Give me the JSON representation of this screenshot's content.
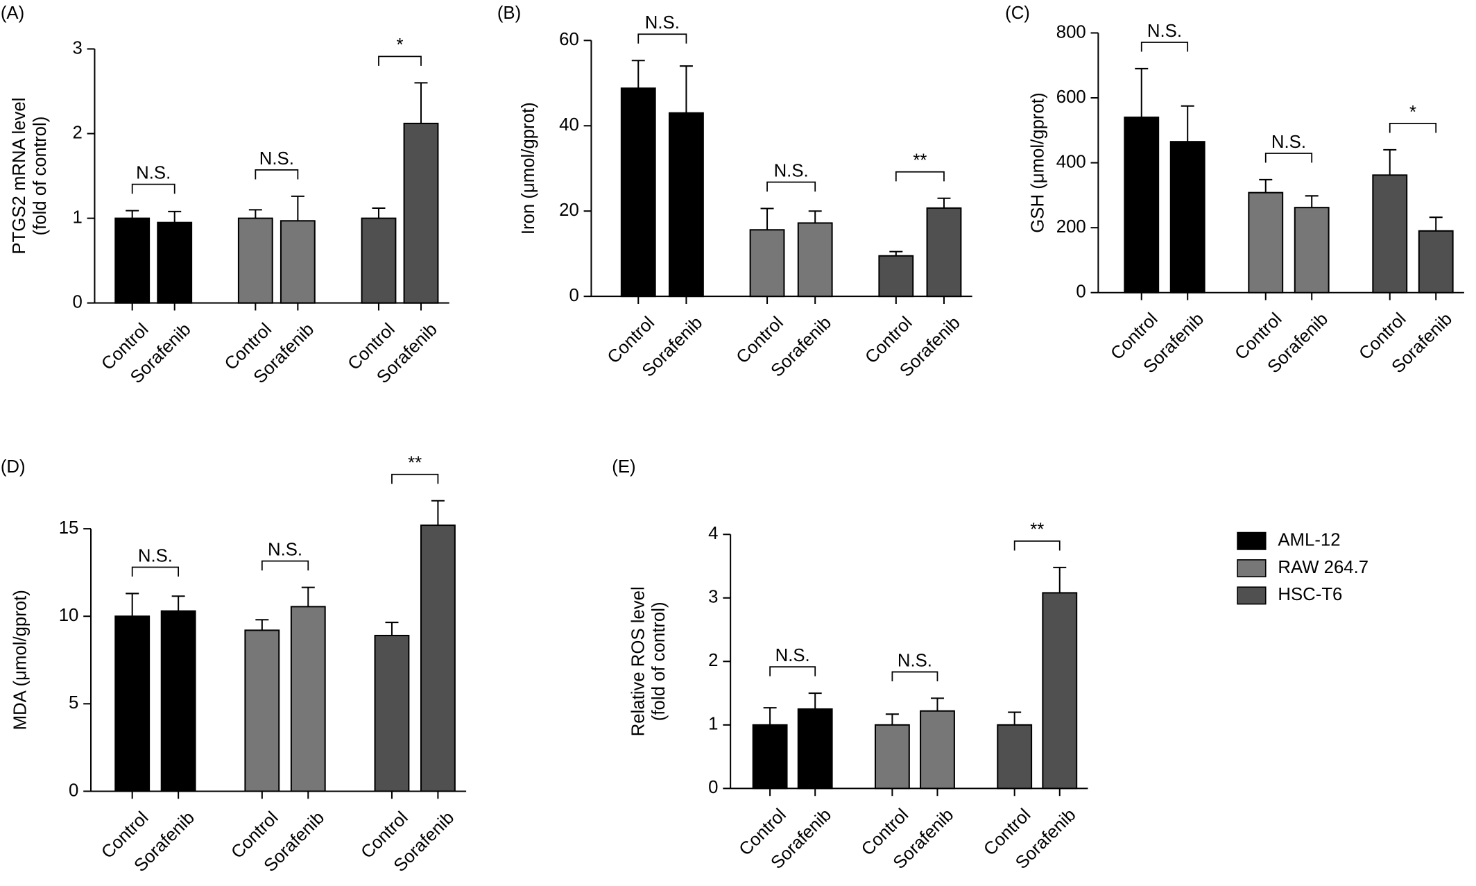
{
  "chart_data": [
    {
      "type": "bar",
      "title": "(A)",
      "ylabel": [
        "PTGS2 mRNA level",
        "(fold of control)"
      ],
      "categories": [
        "Control",
        "Sorafenib"
      ],
      "ylim": [
        0,
        3
      ],
      "yticks": [
        0,
        1,
        2,
        3
      ],
      "series": [
        {
          "color": "#000000",
          "values": [
            1.0,
            0.95
          ],
          "errors": [
            0.09,
            0.13
          ],
          "significance": "N.S."
        },
        {
          "color": "#777777",
          "values": [
            1.0,
            0.97
          ],
          "errors": [
            0.1,
            0.29
          ],
          "significance": "N.S."
        },
        {
          "color": "#505050",
          "values": [
            1.0,
            2.12
          ],
          "errors": [
            0.12,
            0.48
          ],
          "significance": "*"
        }
      ]
    },
    {
      "type": "bar",
      "title": "(B)",
      "ylabel": [
        "Iron (μmol/gprot)"
      ],
      "categories": [
        "Control",
        "Sorafenib"
      ],
      "ylim": [
        0,
        60
      ],
      "yticks": [
        0,
        20,
        40,
        60
      ],
      "series": [
        {
          "color": "#000000",
          "values": [
            48.8,
            43
          ],
          "errors": [
            6.5,
            11
          ],
          "significance": "N.S."
        },
        {
          "color": "#777777",
          "values": [
            15.6,
            17.2
          ],
          "errors": [
            5,
            2.8
          ],
          "significance": "N.S."
        },
        {
          "color": "#505050",
          "values": [
            9.5,
            20.7
          ],
          "errors": [
            1,
            2.3
          ],
          "significance": "**"
        }
      ]
    },
    {
      "type": "bar",
      "title": "(C)",
      "ylabel": [
        "GSH (μmol/gprot)"
      ],
      "categories": [
        "Control",
        "Sorafenib"
      ],
      "ylim": [
        0,
        800
      ],
      "yticks": [
        0,
        200,
        400,
        600,
        800
      ],
      "series": [
        {
          "color": "#000000",
          "values": [
            540,
            465
          ],
          "errors": [
            150,
            110
          ],
          "significance": "N.S."
        },
        {
          "color": "#777777",
          "values": [
            308,
            262
          ],
          "errors": [
            40,
            36
          ],
          "significance": "N.S."
        },
        {
          "color": "#505050",
          "values": [
            362,
            190
          ],
          "errors": [
            78,
            42
          ],
          "significance": "*"
        }
      ]
    },
    {
      "type": "bar",
      "title": "(D)",
      "ylabel": [
        "MDA (μmol/gprot)"
      ],
      "categories": [
        "Control",
        "Sorafenib"
      ],
      "ylim": [
        0,
        15
      ],
      "yticks": [
        0,
        5,
        10,
        15
      ],
      "series": [
        {
          "color": "#000000",
          "values": [
            10,
            10.3
          ],
          "errors": [
            1.3,
            0.85
          ],
          "significance": "N.S."
        },
        {
          "color": "#777777",
          "values": [
            9.2,
            10.55
          ],
          "errors": [
            0.6,
            1.1
          ],
          "significance": "N.S."
        },
        {
          "color": "#505050",
          "values": [
            8.9,
            15.2
          ],
          "errors": [
            0.75,
            1.4
          ],
          "significance": "**"
        }
      ]
    },
    {
      "type": "bar",
      "title": "(E)",
      "ylabel": [
        "Relative ROS level",
        "(fold of control)"
      ],
      "categories": [
        "Control",
        "Sorafenib"
      ],
      "ylim": [
        0,
        4
      ],
      "yticks": [
        0,
        1,
        2,
        3,
        4
      ],
      "series": [
        {
          "color": "#000000",
          "values": [
            1.0,
            1.25
          ],
          "errors": [
            0.27,
            0.25
          ],
          "significance": "N.S."
        },
        {
          "color": "#777777",
          "values": [
            1.0,
            1.22
          ],
          "errors": [
            0.17,
            0.2
          ],
          "significance": "N.S."
        },
        {
          "color": "#505050",
          "values": [
            1.0,
            3.08
          ],
          "errors": [
            0.2,
            0.4
          ],
          "significance": "**"
        }
      ]
    }
  ],
  "legend": [
    {
      "name": "AML-12",
      "color": "#000000"
    },
    {
      "name": "RAW 264.7",
      "color": "#777777"
    },
    {
      "name": "HSC-T6",
      "color": "#505050"
    }
  ]
}
